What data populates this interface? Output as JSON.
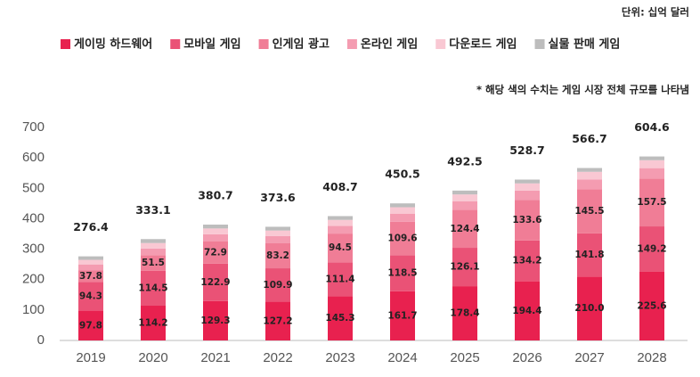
{
  "chart_data": {
    "type": "stacked-bar",
    "unit_note": "단위: 십억 달러",
    "annotation": "* 해당 색의 수치는 게임 시장 전체 규모를 나타냄",
    "categories": [
      "2019",
      "2020",
      "2021",
      "2022",
      "2023",
      "2024",
      "2025",
      "2026",
      "2027",
      "2028"
    ],
    "series": [
      {
        "name": "게이밍 하드웨어",
        "color": "#e8214f",
        "values": [
          97.8,
          114.2,
          129.3,
          127.2,
          145.3,
          161.7,
          178.4,
          194.4,
          210.0,
          225.6
        ],
        "value_labels": [
          "97.8",
          "114.2",
          "129.3",
          "127.2",
          "145.3",
          "161.7",
          "178.4",
          "194.4",
          "210.0",
          "225.6"
        ]
      },
      {
        "name": "모바일 게임",
        "color": "#ea5276",
        "values": [
          94.3,
          114.5,
          122.9,
          109.9,
          111.4,
          118.5,
          126.1,
          134.2,
          141.8,
          149.2
        ],
        "value_labels": [
          "94.3",
          "114.5",
          "122.9",
          "109.9",
          "111.4",
          "118.5",
          "126.1",
          "134.2",
          "141.8",
          "149.2"
        ]
      },
      {
        "name": "인게임 광고",
        "color": "#f07d96",
        "values": [
          37.8,
          51.5,
          72.9,
          83.2,
          94.5,
          109.6,
          124.4,
          133.6,
          145.5,
          157.5
        ],
        "value_labels": [
          "37.8",
          "51.5",
          "72.9",
          "83.2",
          "94.5",
          "109.6",
          "124.4",
          "133.6",
          "145.5",
          "157.5"
        ]
      },
      {
        "name": "온라인 게임",
        "color": "#f49cb1",
        "values": [
          20,
          22,
          24,
          23,
          25,
          27,
          28,
          30,
          32,
          34
        ]
      },
      {
        "name": "다운로드 게임",
        "color": "#f9c8d3",
        "values": [
          15,
          18,
          19,
          18,
          20,
          21,
          23,
          24,
          25,
          26
        ]
      },
      {
        "name": "실물 판매 게임",
        "color": "#bdbdbd",
        "values": [
          11.5,
          12.9,
          12.6,
          12.3,
          12.5,
          12.7,
          12.6,
          12.5,
          12.4,
          12.3
        ]
      }
    ],
    "totals": [
      276.4,
      333.1,
      380.7,
      373.6,
      408.7,
      450.5,
      492.5,
      528.7,
      566.7,
      604.6
    ],
    "ylim": [
      0,
      700
    ],
    "yticks": [
      0,
      100,
      200,
      300,
      400,
      500,
      600,
      700
    ],
    "grid": false
  }
}
